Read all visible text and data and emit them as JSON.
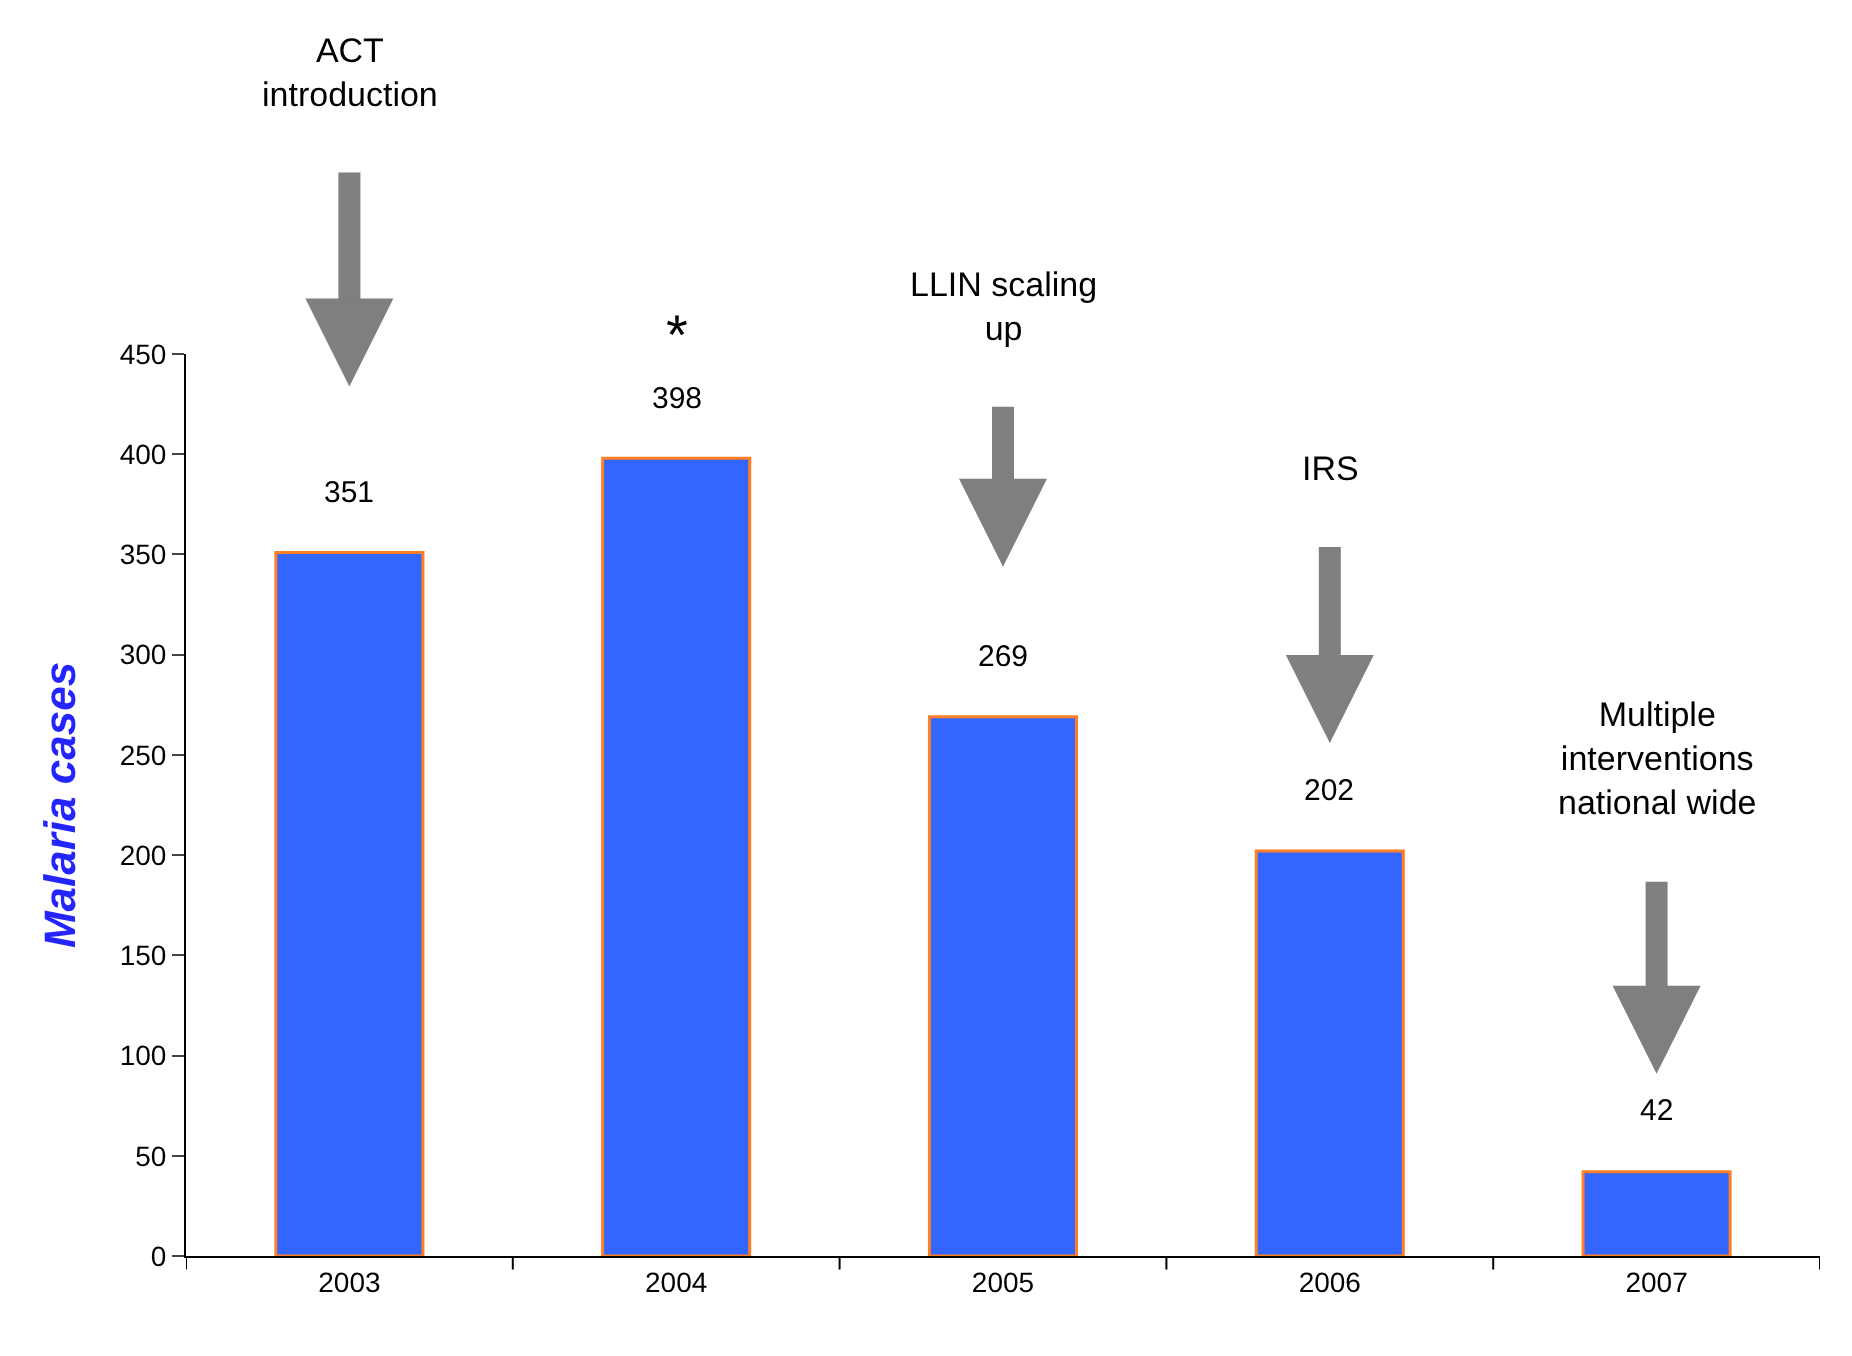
{
  "chart_data": {
    "type": "bar",
    "ylabel": "Malaria cases",
    "categories": [
      "2003",
      "2004",
      "2005",
      "2006",
      "2007"
    ],
    "series": [
      {
        "color": "#3366ff",
        "values": [
          351,
          398,
          269,
          202,
          42
        ]
      }
    ],
    "ylim": [
      0,
      450
    ],
    "yticks": [
      0,
      50,
      100,
      150,
      200,
      250,
      300,
      350,
      400,
      450
    ],
    "data_labels": true,
    "annotations": [
      {
        "text": "ACT\nintroduction",
        "x": "2003",
        "y": 351
      },
      {
        "text": "*",
        "x": "2004",
        "y": 398
      },
      {
        "text": "LLIN scaling\nup",
        "x": "2005",
        "y": 269
      },
      {
        "text": "IRS",
        "x": "2006",
        "y": 202
      },
      {
        "text": "Multiple\ninterventions\nnational wide",
        "x": "2007",
        "y": 42
      }
    ]
  }
}
